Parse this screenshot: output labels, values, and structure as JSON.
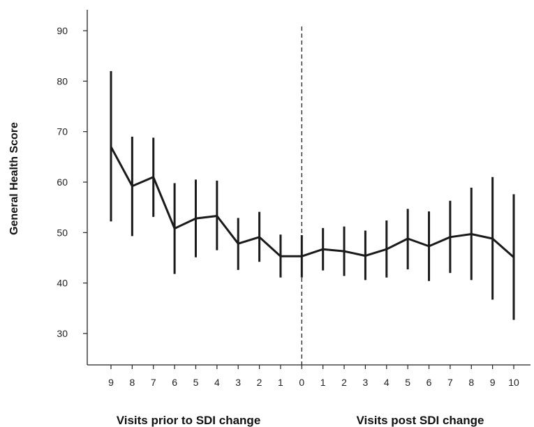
{
  "chart_data": {
    "type": "line",
    "ylabel": "General Health Score",
    "xlabel_left": "Visits prior to SDI change",
    "xlabel_right": "Visits post SDI change",
    "x_tick_labels": [
      "9",
      "8",
      "7",
      "6",
      "5",
      "4",
      "3",
      "2",
      "1",
      "0",
      "1",
      "2",
      "3",
      "4",
      "5",
      "6",
      "7",
      "8",
      "9",
      "10"
    ],
    "y_ticks": [
      30,
      40,
      50,
      60,
      70,
      80,
      90
    ],
    "ylim": [
      23,
      92
    ],
    "divider_after_index": 9,
    "grid": false,
    "series": [
      {
        "values": [
          67,
          59.2,
          61,
          50.8,
          52.8,
          53.3,
          47.8,
          49.1,
          45.3,
          45.3,
          46.7,
          46.3,
          45.4,
          46.7,
          48.8,
          47.3,
          49.1,
          49.7,
          48.8,
          45.1
        ],
        "error_low": [
          52.2,
          49.3,
          53.1,
          41.8,
          45.1,
          46.5,
          42.6,
          44.2,
          41.1,
          41.1,
          42.5,
          41.4,
          40.6,
          41.1,
          42.7,
          40.4,
          42,
          40.6,
          36.7,
          32.7
        ],
        "error_high": [
          82,
          69,
          68.8,
          59.8,
          60.5,
          60.3,
          52.9,
          54.1,
          49.6,
          49.5,
          50.9,
          51.2,
          50.4,
          52.4,
          54.7,
          54.2,
          56.3,
          58.9,
          61,
          57.6
        ]
      }
    ]
  }
}
